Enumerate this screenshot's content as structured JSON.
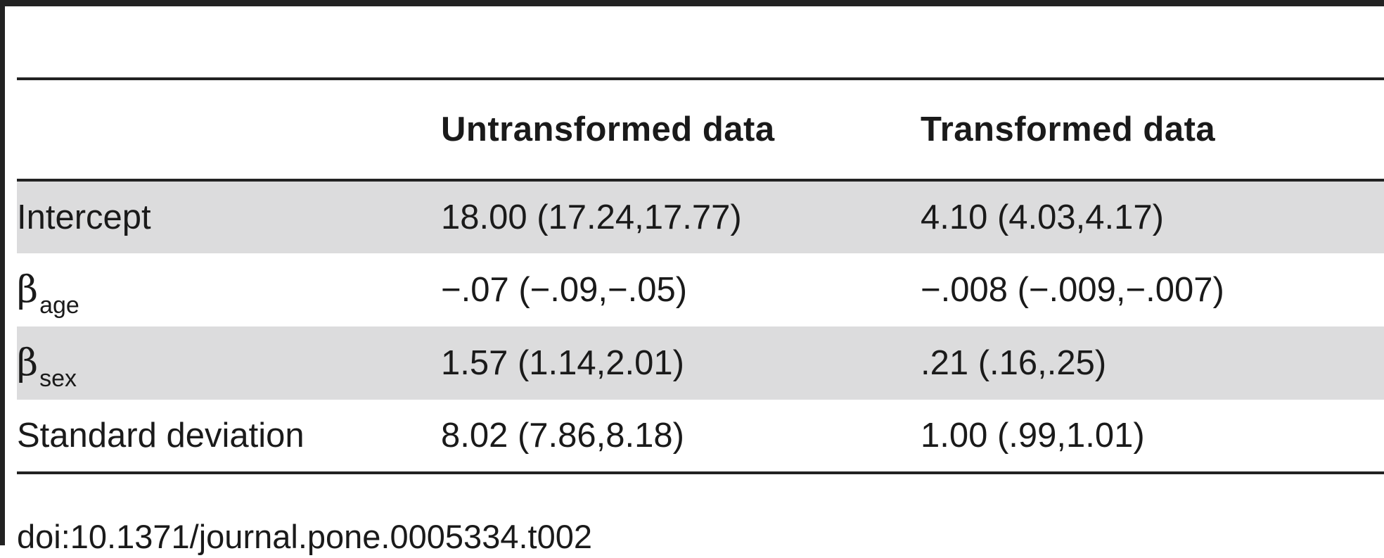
{
  "table": {
    "headers": [
      "",
      "Untransformed data",
      "Transformed data"
    ],
    "rows": [
      {
        "label": "Intercept",
        "untransformed": "18.00 (17.24,17.77)",
        "transformed": "4.10 (4.03,4.17)"
      },
      {
        "label_symbol": "β",
        "label_subscript": "age",
        "untransformed": "−.07 (−.09,−.05)",
        "transformed": "−.008 (−.009,−.007)"
      },
      {
        "label_symbol": "β",
        "label_subscript": "sex",
        "untransformed": "1.57 (1.14,2.01)",
        "transformed": ".21 (.16,.25)"
      },
      {
        "label": "Standard deviation",
        "untransformed": "8.02 (7.86,8.18)",
        "transformed": "1.00 (.99,1.01)"
      }
    ]
  },
  "footer": {
    "doi": "doi:10.1371/journal.pone.0005334.t002"
  },
  "colors": {
    "rule": "#222222",
    "shaded_row": "#dcdcdd",
    "text": "#1a1a1a"
  }
}
